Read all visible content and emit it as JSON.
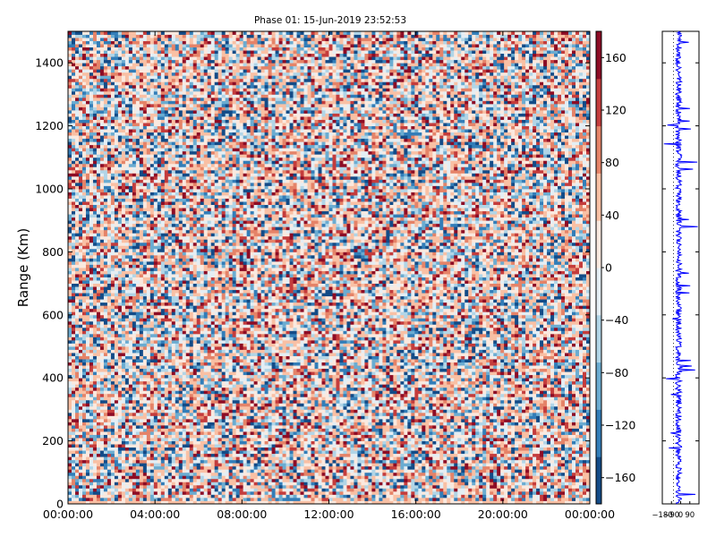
{
  "chart_data": [
    {
      "type": "heatmap",
      "title": "Phase 01: 15-Jun-2019 23:52:53",
      "xlabel": "",
      "ylabel": "Range (Km)",
      "x_tick_labels": [
        "00:00:00",
        "04:00:00",
        "08:00:00",
        "12:00:00",
        "16:00:00",
        "20:00:00",
        "00:00:00"
      ],
      "y_ticks": [
        0,
        200,
        400,
        600,
        800,
        1000,
        1200,
        1400
      ],
      "ylim": [
        0,
        1500
      ],
      "colorbar": {
        "colormap": "RdBu_r",
        "range": [
          -180,
          180
        ],
        "ticks": [
          -160,
          -120,
          -80,
          -40,
          0,
          40,
          80,
          120,
          160
        ]
      },
      "grid": false
    },
    {
      "type": "line",
      "title": "",
      "color": "#0000ff",
      "x_tick_labels": [
        "−180",
        "−90",
        "0",
        "90"
      ],
      "xlim": [
        -180,
        180
      ],
      "ylim": [
        0,
        1500
      ],
      "y_ticks": [
        0,
        200,
        400,
        600,
        800,
        1000,
        1200,
        1400
      ]
    }
  ]
}
